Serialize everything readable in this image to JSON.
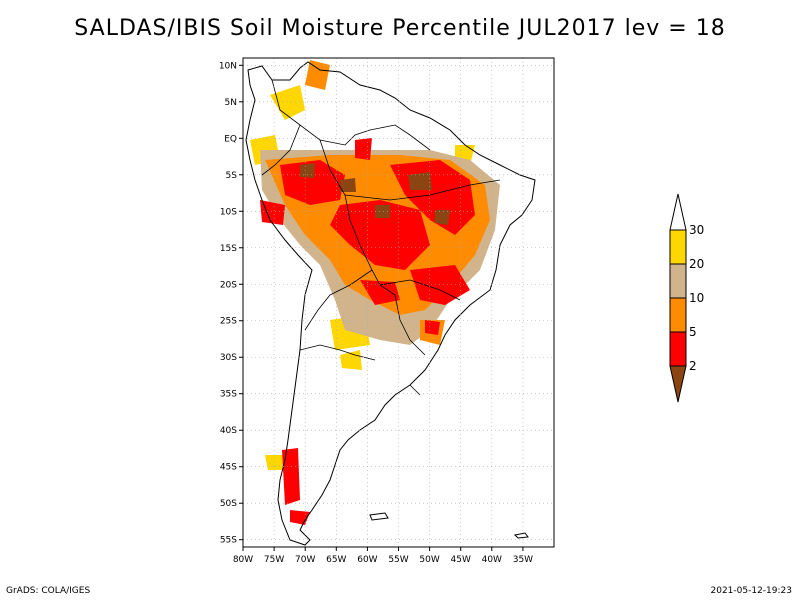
{
  "title": "SALDAS/IBIS Soil Moisture Percentile JUL2017 lev = 18",
  "footer": {
    "left": "GrADS: COLA/IGES",
    "right": "2021-05-12-19:23"
  },
  "map": {
    "lon_range": [
      -80,
      -30
    ],
    "lat_range": [
      -56,
      11
    ],
    "lon_ticks": [
      {
        "value": -80,
        "label": "80W"
      },
      {
        "value": -75,
        "label": "75W"
      },
      {
        "value": -70,
        "label": "70W"
      },
      {
        "value": -65,
        "label": "65W"
      },
      {
        "value": -60,
        "label": "60W"
      },
      {
        "value": -55,
        "label": "55W"
      },
      {
        "value": -50,
        "label": "50W"
      },
      {
        "value": -45,
        "label": "45W"
      },
      {
        "value": -40,
        "label": "40W"
      },
      {
        "value": -35,
        "label": "35W"
      }
    ],
    "lat_ticks": [
      {
        "value": 10,
        "label": "10N"
      },
      {
        "value": 5,
        "label": "5N"
      },
      {
        "value": 0,
        "label": "EQ"
      },
      {
        "value": -5,
        "label": "5S"
      },
      {
        "value": -10,
        "label": "10S"
      },
      {
        "value": -15,
        "label": "15S"
      },
      {
        "value": -20,
        "label": "20S"
      },
      {
        "value": -25,
        "label": "25S"
      },
      {
        "value": -30,
        "label": "30S"
      },
      {
        "value": -35,
        "label": "35S"
      },
      {
        "value": -40,
        "label": "40S"
      },
      {
        "value": -45,
        "label": "45S"
      },
      {
        "value": -50,
        "label": "50S"
      },
      {
        "value": -55,
        "label": "55S"
      }
    ]
  },
  "colorbar": {
    "labels": [
      "2",
      "5",
      "10",
      "20",
      "30"
    ],
    "colors": {
      "below_2": "#8b4513",
      "2_5": "#ff0000",
      "5_10": "#ff8c00",
      "10_20": "#d2b48c",
      "20_30": "#ffd700",
      "above_30": "#ffffff"
    }
  },
  "colors": {
    "land_outline": "#000000",
    "grid": "#aaaaaa"
  }
}
